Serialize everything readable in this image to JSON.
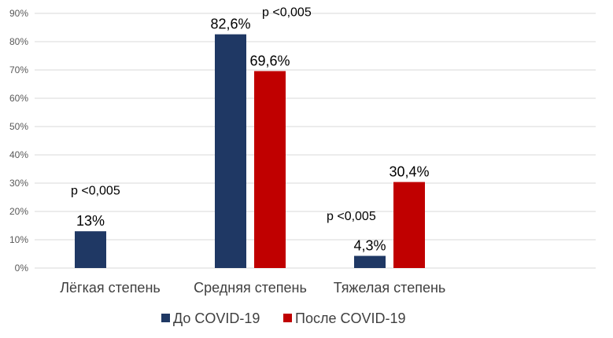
{
  "chart_data": {
    "type": "bar",
    "categories": [
      "Лёгкая степень",
      "Средняя степень",
      "Тяжелая степень"
    ],
    "series": [
      {
        "name": "До COVID-19",
        "color": "#1f3864",
        "values": [
          13,
          82.6,
          4.3
        ],
        "labels": [
          "13%",
          "82,6%",
          "4,3%"
        ]
      },
      {
        "name": "После COVID-19",
        "color": "#c00000",
        "values": [
          null,
          69.6,
          30.4
        ],
        "labels": [
          "",
          "69,6%",
          "30,4%"
        ]
      }
    ],
    "ylim": [
      0,
      90
    ],
    "yticks": [
      0,
      10,
      20,
      30,
      40,
      50,
      60,
      70,
      80,
      90
    ],
    "ytick_labels": [
      "0%",
      "10%",
      "20%",
      "30%",
      "40%",
      "50%",
      "60%",
      "70%",
      "80%",
      "90%"
    ],
    "annotations": [
      {
        "text": "p <0,005",
        "category": 0,
        "value": 26
      },
      {
        "text": "p <0,005",
        "category": 1,
        "value": 89
      },
      {
        "text": "p <0,005",
        "category": 2,
        "value": 17
      }
    ],
    "grid": true,
    "legend": "bottom",
    "title": "",
    "xlabel": "",
    "ylabel": ""
  }
}
